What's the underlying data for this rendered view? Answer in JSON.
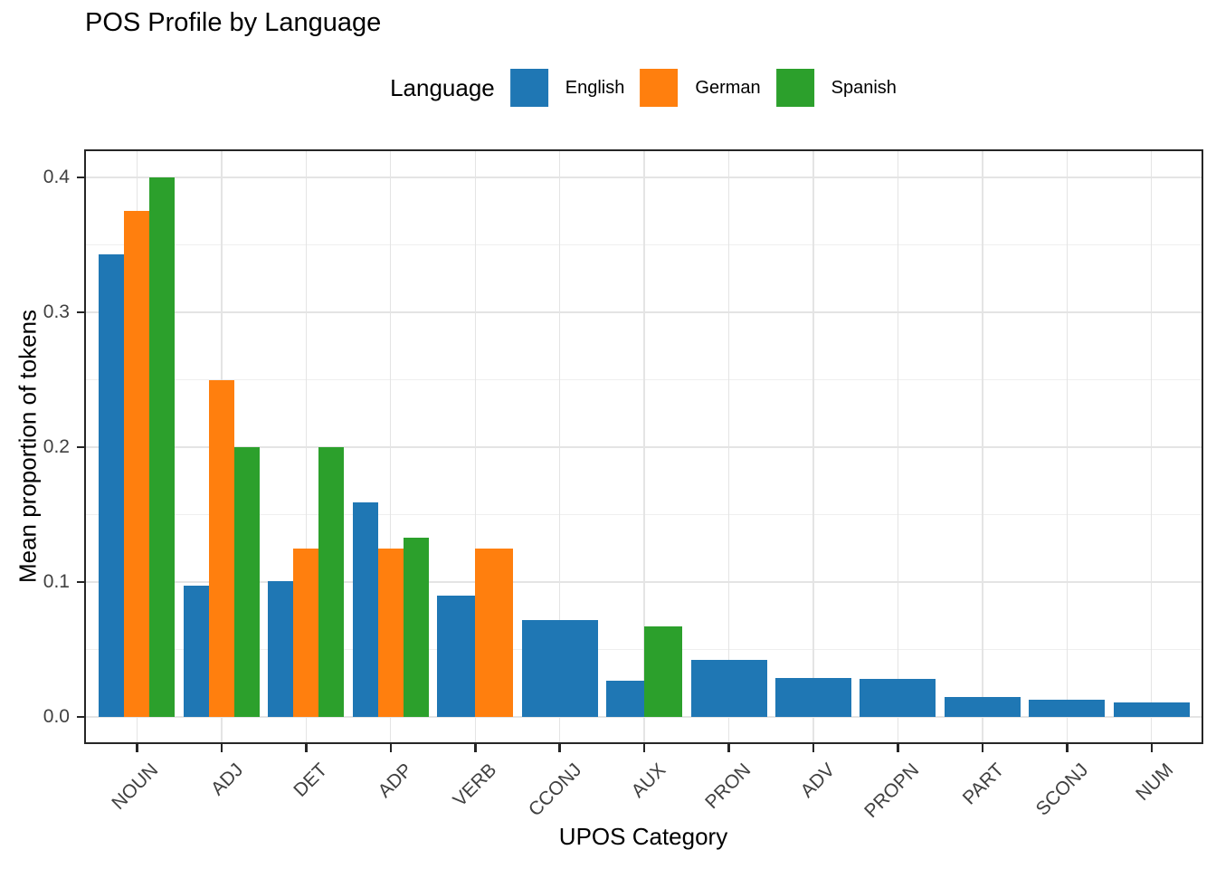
{
  "chart_data": {
    "type": "bar",
    "title": "POS Profile by Language",
    "xlabel": "UPOS Category",
    "ylabel": "Mean proportion of tokens",
    "legend_title": "Language",
    "legend_position": "top-center",
    "grid": "major+minor horizontal, major vertical at category centers",
    "bar_mode": "dodged; slot width divided among languages present in each category",
    "categories": [
      "NOUN",
      "ADJ",
      "DET",
      "ADP",
      "VERB",
      "CCONJ",
      "AUX",
      "PRON",
      "ADV",
      "PROPN",
      "PART",
      "SCONJ",
      "NUM"
    ],
    "series": [
      {
        "name": "English",
        "color": "#1f77b4",
        "values": [
          0.343,
          0.097,
          0.101,
          0.159,
          0.09,
          0.072,
          0.027,
          0.042,
          0.029,
          0.028,
          0.015,
          0.013,
          0.011
        ]
      },
      {
        "name": "German",
        "color": "#ff7f0e",
        "values": [
          0.375,
          0.25,
          0.125,
          0.125,
          0.125,
          null,
          null,
          null,
          null,
          null,
          null,
          null,
          null
        ]
      },
      {
        "name": "Spanish",
        "color": "#2ca02c",
        "values": [
          0.4,
          0.2,
          0.2,
          0.133,
          null,
          null,
          0.067,
          null,
          null,
          null,
          null,
          null,
          null
        ]
      }
    ],
    "y_ticks": [
      0.0,
      0.1,
      0.2,
      0.3,
      0.4
    ],
    "y_tick_labels": [
      "0.0",
      "0.1",
      "0.2",
      "0.3",
      "0.4"
    ],
    "y_minor_ticks": [
      0.05,
      0.15,
      0.25,
      0.35
    ],
    "ylim": [
      -0.02,
      0.42
    ]
  },
  "style": {
    "background": "#ffffff",
    "panel_border": "#262626",
    "grid_major": "#e4e4e4",
    "grid_minor": "#efefef",
    "tick_color": "#262626",
    "tick_label_color": "#404040",
    "title_color": "#000000"
  }
}
